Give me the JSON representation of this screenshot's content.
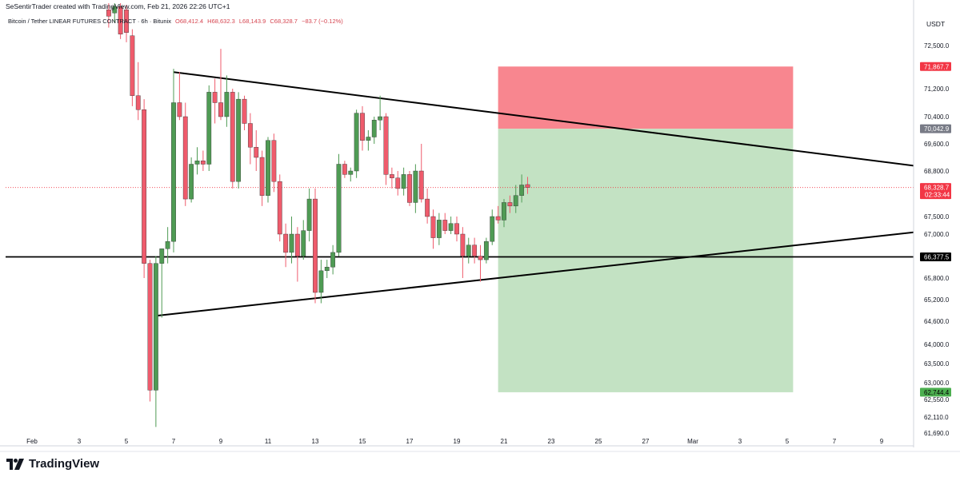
{
  "header": {
    "attribution": "SeSentirTrader created with TradingView.com, Feb 21, 2026 22:26 UTC+1",
    "symbol": "Bitcoin / Tether LINEAR FUTURES CONTRACT · 6h · Bitunix",
    "ohlc": {
      "open": "O68,412.4",
      "high": "H68,632.3",
      "low": "L68,143.9",
      "close": "C68,328.7",
      "change": "−83.7 (−0.12%)"
    }
  },
  "footer": {
    "brand": "TradingView"
  },
  "colors": {
    "up": "#4f9b54",
    "down": "#ef5b6c",
    "stop_zone": "#f8868f",
    "target_zone": "#c3e2c3",
    "line": "#000000"
  },
  "chart_data": {
    "type": "candlestick",
    "currency": "USDT",
    "timeframe": "6h",
    "x_ticks": [
      "Feb",
      "3",
      "5",
      "7",
      "9",
      "11",
      "13",
      "15",
      "17",
      "19",
      "21",
      "23",
      "25",
      "27",
      "Mar",
      "3",
      "5",
      "7",
      "9"
    ],
    "y_ticks": [
      "72,500.0",
      "71,200.0",
      "70,400.0",
      "69,600.0",
      "68,800.0",
      "67,500.0",
      "67,000.0",
      "65,800.0",
      "65,200.0",
      "64,600.0",
      "64,000.0",
      "63,500.0",
      "63,000.0",
      "62,550.0",
      "62,110.0",
      "61,690.0"
    ],
    "ylim": [
      61400,
      73800
    ],
    "price_labels": [
      {
        "label": "71,867.7",
        "value": 71867.7,
        "color": "#f23645",
        "text_color": "#ffffff"
      },
      {
        "label": "70,042.9",
        "value": 70042.9,
        "color": "#787b86",
        "text_color": "#ffffff"
      },
      {
        "label": "68,328.7",
        "sub": "02:33:44",
        "value": 68328.7,
        "color": "#f23645",
        "text_color": "#ffffff"
      },
      {
        "label": "66,377.5",
        "value": 66377.5,
        "color": "#000000",
        "text_color": "#ffffff"
      },
      {
        "label": "62,744.4",
        "value": 62744.4,
        "color": "#4caf50",
        "text_color": "#000000"
      }
    ],
    "horizontal_line": {
      "value": 66377.5
    },
    "trendlines": [
      {
        "name": "upper",
        "from": {
          "date": "Feb 7 00:00",
          "price": 71700
        },
        "to": {
          "date": "Mar 11 00:00",
          "price": 68900
        }
      },
      {
        "name": "lower",
        "from": {
          "date": "Feb 6 06:00",
          "price": 64750
        },
        "to": {
          "date": "Mar 11 00:00",
          "price": 67100
        }
      }
    ],
    "position": {
      "side": "short",
      "start": "Feb 20 18:00",
      "end": "Mar 5 06:00",
      "entry": 70042.9,
      "stop": 71867.7,
      "target": 62744.4
    },
    "candles": [
      {
        "t": "Feb 4 06:00",
        "o": 73600,
        "h": 73850,
        "l": 73050,
        "c": 73400
      },
      {
        "t": "Feb 4 12:00",
        "o": 73500,
        "h": 73900,
        "l": 73200,
        "c": 73700
      },
      {
        "t": "Feb 4 18:00",
        "o": 73700,
        "h": 73850,
        "l": 72700,
        "c": 72850
      },
      {
        "t": "Feb 5 00:00",
        "o": 73600,
        "h": 73750,
        "l": 72600,
        "c": 72900
      },
      {
        "t": "Feb 5 06:00",
        "o": 72800,
        "h": 73000,
        "l": 70700,
        "c": 71000
      },
      {
        "t": "Feb 5 12:00",
        "o": 71000,
        "h": 72000,
        "l": 70300,
        "c": 70600
      },
      {
        "t": "Feb 5 18:00",
        "o": 70600,
        "h": 70900,
        "l": 65800,
        "c": 66200
      },
      {
        "t": "Feb 6 00:00",
        "o": 66200,
        "h": 66300,
        "l": 62500,
        "c": 62800
      },
      {
        "t": "Feb 6 06:00",
        "o": 62800,
        "h": 66400,
        "l": 61850,
        "c": 66200
      },
      {
        "t": "Feb 6 12:00",
        "o": 66200,
        "h": 66600,
        "l": 64700,
        "c": 66600
      },
      {
        "t": "Feb 6 18:00",
        "o": 66600,
        "h": 67200,
        "l": 66200,
        "c": 66800
      },
      {
        "t": "Feb 7 00:00",
        "o": 66800,
        "h": 71800,
        "l": 66500,
        "c": 70800
      },
      {
        "t": "Feb 7 06:00",
        "o": 70800,
        "h": 71700,
        "l": 70300,
        "c": 70400
      },
      {
        "t": "Feb 7 12:00",
        "o": 70400,
        "h": 70800,
        "l": 67800,
        "c": 68000
      },
      {
        "t": "Feb 7 18:00",
        "o": 68000,
        "h": 69200,
        "l": 67900,
        "c": 69000
      },
      {
        "t": "Feb 8 00:00",
        "o": 69000,
        "h": 69500,
        "l": 68700,
        "c": 69100
      },
      {
        "t": "Feb 8 06:00",
        "o": 69100,
        "h": 69400,
        "l": 68800,
        "c": 69000
      },
      {
        "t": "Feb 8 12:00",
        "o": 69000,
        "h": 71300,
        "l": 68800,
        "c": 71100
      },
      {
        "t": "Feb 8 18:00",
        "o": 71100,
        "h": 71500,
        "l": 70200,
        "c": 70800
      },
      {
        "t": "Feb 9 00:00",
        "o": 70800,
        "h": 72400,
        "l": 70300,
        "c": 70400
      },
      {
        "t": "Feb 9 06:00",
        "o": 70400,
        "h": 71600,
        "l": 70100,
        "c": 71100
      },
      {
        "t": "Feb 9 12:00",
        "o": 71100,
        "h": 71200,
        "l": 68300,
        "c": 68500
      },
      {
        "t": "Feb 9 18:00",
        "o": 68500,
        "h": 71100,
        "l": 68300,
        "c": 70900
      },
      {
        "t": "Feb 10 00:00",
        "o": 70900,
        "h": 71000,
        "l": 70000,
        "c": 70200
      },
      {
        "t": "Feb 10 06:00",
        "o": 70200,
        "h": 70500,
        "l": 69000,
        "c": 69500
      },
      {
        "t": "Feb 10 12:00",
        "o": 69500,
        "h": 70000,
        "l": 68800,
        "c": 69200
      },
      {
        "t": "Feb 10 18:00",
        "o": 69200,
        "h": 69400,
        "l": 67800,
        "c": 68100
      },
      {
        "t": "Feb 11 00:00",
        "o": 68100,
        "h": 69800,
        "l": 67900,
        "c": 69700
      },
      {
        "t": "Feb 11 06:00",
        "o": 69700,
        "h": 69900,
        "l": 68200,
        "c": 68500
      },
      {
        "t": "Feb 11 12:00",
        "o": 68500,
        "h": 68700,
        "l": 66800,
        "c": 67000
      },
      {
        "t": "Feb 11 18:00",
        "o": 67000,
        "h": 67300,
        "l": 66100,
        "c": 66500
      },
      {
        "t": "Feb 12 00:00",
        "o": 66500,
        "h": 67500,
        "l": 66200,
        "c": 67000
      },
      {
        "t": "Feb 12 06:00",
        "o": 67000,
        "h": 67200,
        "l": 65700,
        "c": 66400
      },
      {
        "t": "Feb 12 12:00",
        "o": 66400,
        "h": 67400,
        "l": 66300,
        "c": 67100
      },
      {
        "t": "Feb 12 18:00",
        "o": 67100,
        "h": 68300,
        "l": 66800,
        "c": 68000
      },
      {
        "t": "Feb 13 00:00",
        "o": 68000,
        "h": 68300,
        "l": 65100,
        "c": 65400
      },
      {
        "t": "Feb 13 06:00",
        "o": 65400,
        "h": 66300,
        "l": 65100,
        "c": 66000
      },
      {
        "t": "Feb 13 12:00",
        "o": 66000,
        "h": 66300,
        "l": 65800,
        "c": 66100
      },
      {
        "t": "Feb 13 18:00",
        "o": 66100,
        "h": 66700,
        "l": 65900,
        "c": 66500
      },
      {
        "t": "Feb 14 00:00",
        "o": 66500,
        "h": 69300,
        "l": 66400,
        "c": 69000
      },
      {
        "t": "Feb 14 06:00",
        "o": 69000,
        "h": 69100,
        "l": 68600,
        "c": 68700
      },
      {
        "t": "Feb 14 12:00",
        "o": 68700,
        "h": 68900,
        "l": 68500,
        "c": 68800
      },
      {
        "t": "Feb 14 18:00",
        "o": 68800,
        "h": 70600,
        "l": 68600,
        "c": 70500
      },
      {
        "t": "Feb 15 00:00",
        "o": 70500,
        "h": 70700,
        "l": 69400,
        "c": 69700
      },
      {
        "t": "Feb 15 06:00",
        "o": 69700,
        "h": 70000,
        "l": 69400,
        "c": 69800
      },
      {
        "t": "Feb 15 12:00",
        "o": 69800,
        "h": 70400,
        "l": 69600,
        "c": 70300
      },
      {
        "t": "Feb 15 18:00",
        "o": 70300,
        "h": 71000,
        "l": 70000,
        "c": 70400
      },
      {
        "t": "Feb 16 00:00",
        "o": 70400,
        "h": 70500,
        "l": 68400,
        "c": 68700
      },
      {
        "t": "Feb 16 06:00",
        "o": 68700,
        "h": 68900,
        "l": 68300,
        "c": 68600
      },
      {
        "t": "Feb 16 12:00",
        "o": 68600,
        "h": 68800,
        "l": 68100,
        "c": 68300
      },
      {
        "t": "Feb 16 18:00",
        "o": 68300,
        "h": 68900,
        "l": 68100,
        "c": 68700
      },
      {
        "t": "Feb 17 00:00",
        "o": 68700,
        "h": 68800,
        "l": 67800,
        "c": 67900
      },
      {
        "t": "Feb 17 06:00",
        "o": 67900,
        "h": 69000,
        "l": 67600,
        "c": 68800
      },
      {
        "t": "Feb 17 12:00",
        "o": 68800,
        "h": 69600,
        "l": 67900,
        "c": 68000
      },
      {
        "t": "Feb 17 18:00",
        "o": 68000,
        "h": 68300,
        "l": 67300,
        "c": 67500
      },
      {
        "t": "Feb 18 00:00",
        "o": 67500,
        "h": 67700,
        "l": 66600,
        "c": 66900
      },
      {
        "t": "Feb 18 06:00",
        "o": 66900,
        "h": 67600,
        "l": 66700,
        "c": 67400
      },
      {
        "t": "Feb 18 12:00",
        "o": 67400,
        "h": 67600,
        "l": 67000,
        "c": 67100
      },
      {
        "t": "Feb 18 18:00",
        "o": 67100,
        "h": 67500,
        "l": 67000,
        "c": 67300
      },
      {
        "t": "Feb 19 00:00",
        "o": 67300,
        "h": 67500,
        "l": 66800,
        "c": 67000
      },
      {
        "t": "Feb 19 06:00",
        "o": 67000,
        "h": 67200,
        "l": 65800,
        "c": 66400
      },
      {
        "t": "Feb 19 12:00",
        "o": 66400,
        "h": 66900,
        "l": 66200,
        "c": 66700
      },
      {
        "t": "Feb 19 18:00",
        "o": 66700,
        "h": 66900,
        "l": 66200,
        "c": 66400
      },
      {
        "t": "Feb 20 00:00",
        "o": 66400,
        "h": 66700,
        "l": 65700,
        "c": 66300
      },
      {
        "t": "Feb 20 06:00",
        "o": 66300,
        "h": 66900,
        "l": 66200,
        "c": 66800
      },
      {
        "t": "Feb 20 12:00",
        "o": 66800,
        "h": 67700,
        "l": 66700,
        "c": 67500
      },
      {
        "t": "Feb 20 18:00",
        "o": 67500,
        "h": 67800,
        "l": 67300,
        "c": 67400
      },
      {
        "t": "Feb 21 00:00",
        "o": 67400,
        "h": 68000,
        "l": 67200,
        "c": 67900
      },
      {
        "t": "Feb 21 06:00",
        "o": 67900,
        "h": 68100,
        "l": 67600,
        "c": 67800
      },
      {
        "t": "Feb 21 12:00",
        "o": 67800,
        "h": 68400,
        "l": 67600,
        "c": 68100
      },
      {
        "t": "Feb 21 18:00",
        "o": 68100,
        "h": 68700,
        "l": 67900,
        "c": 68400
      },
      {
        "t": "Feb 22 00:00",
        "o": 68412.4,
        "h": 68632.3,
        "l": 68143.9,
        "c": 68328.7
      }
    ]
  }
}
